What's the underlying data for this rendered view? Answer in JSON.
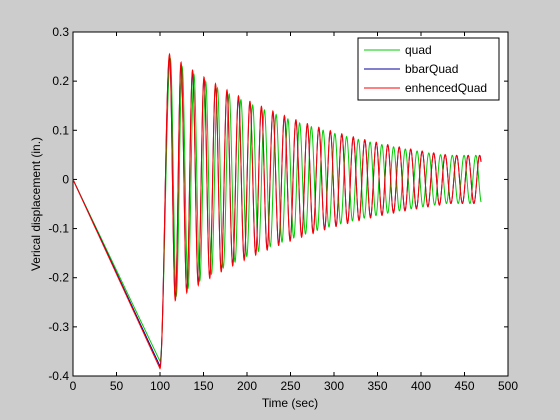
{
  "figure": {
    "background": "#cccccc"
  },
  "chart_data": {
    "type": "line",
    "title": "",
    "xlabel": "Time (sec)",
    "ylabel": "Verical displacement (in.)",
    "xlim": [
      0,
      500
    ],
    "ylim": [
      -0.4,
      0.3
    ],
    "xticks": [
      0,
      50,
      100,
      150,
      200,
      250,
      300,
      350,
      400,
      450,
      500
    ],
    "yticks": [
      -0.4,
      -0.3,
      -0.2,
      -0.1,
      0,
      0.1,
      0.2,
      0.3
    ],
    "xtick_labels": [
      "0",
      "50",
      "100",
      "150",
      "200",
      "250",
      "300",
      "350",
      "400",
      "450",
      "500"
    ],
    "ytick_labels": [
      "-0.4",
      "-0.3",
      "-0.2",
      "-0.1",
      "0",
      "0.1",
      "0.2",
      "0.3"
    ],
    "grid": false,
    "legend_position": "top-right",
    "series": [
      {
        "name": "quad",
        "color": "#00cc00",
        "ramp": {
          "x": [
            0,
            100
          ],
          "y": [
            0,
            -0.37
          ]
        },
        "oscillation": {
          "x_start": 100,
          "x_end": 469,
          "first_peak_time": 112,
          "first_peak": 0.245,
          "period": 13.5,
          "decay": 0.0051,
          "floor": 0.049
        }
      },
      {
        "name": "bbarQuad",
        "color": "#000099",
        "ramp": {
          "x": [
            0,
            100
          ],
          "y": [
            0,
            -0.38
          ]
        },
        "oscillation": {
          "x_start": 100,
          "x_end": 469,
          "first_peak_time": 111,
          "first_peak": 0.25,
          "period": 13.2,
          "decay": 0.0051,
          "floor": 0.049
        }
      },
      {
        "name": "enhencedQuad",
        "color": "#ff0000",
        "ramp": {
          "x": [
            0,
            100
          ],
          "y": [
            0,
            -0.385
          ]
        },
        "oscillation": {
          "x_start": 100,
          "x_end": 469,
          "first_peak_time": 111,
          "first_peak": 0.255,
          "period": 13.2,
          "decay": 0.0051,
          "floor": 0.049
        }
      }
    ]
  }
}
